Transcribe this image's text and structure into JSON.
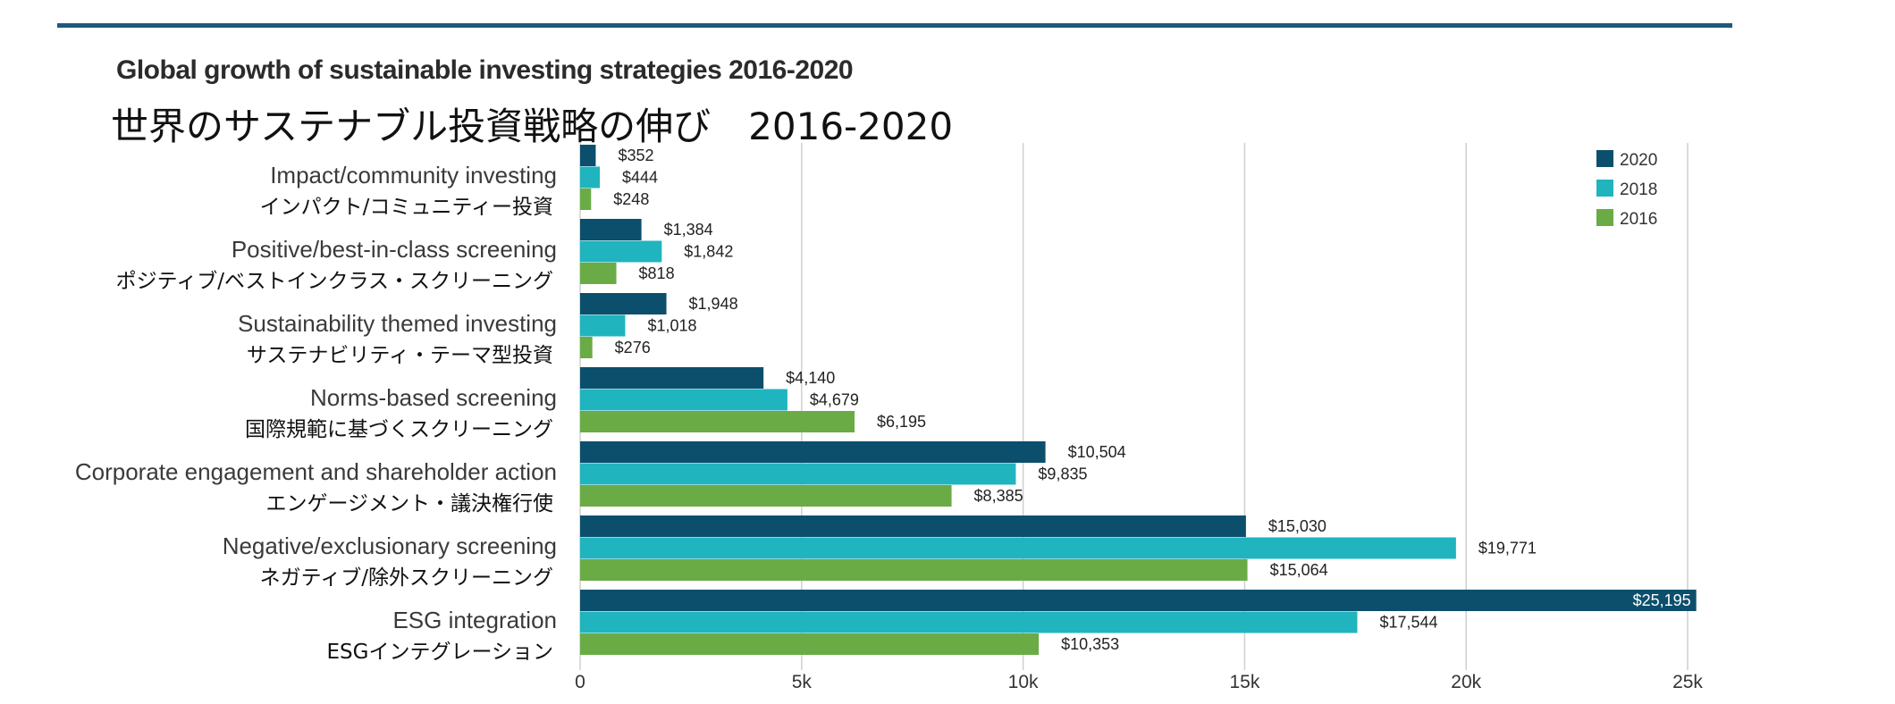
{
  "title_en": "Global growth of sustainable investing strategies 2016-2020",
  "title_ja": "世界のサステナブル投資戦略の伸び　2016-2020",
  "colors": {
    "2020": "#0b4f6c",
    "2018": "#20b4bf",
    "2016": "#6aab45",
    "rule": "#1e5a7a"
  },
  "chart_data": {
    "type": "bar",
    "orientation": "horizontal",
    "categories": [
      "Impact/community investing",
      "Positive/best-in-class screening",
      "Sustainability themed investing",
      "Norms-based screening",
      "Corporate engagement and shareholder action",
      "Negative/exclusionary screening",
      "ESG integration"
    ],
    "categories_ja": [
      "インパクト/コミュニティー投資",
      "ポジティブ/ベストインクラス・スクリーニング",
      "サステナビリティ・テーマ型投資",
      "国際規範に基づくスクリーニング",
      "エンゲージメント・議決権行使",
      "ネガティブ/除外スクリーニング",
      "ESGインテグレーション"
    ],
    "series": [
      {
        "name": "2020",
        "values": [
          352,
          1384,
          1948,
          4140,
          10504,
          15030,
          25195
        ],
        "labels": [
          "$352",
          "$1,384",
          "$1,948",
          "$4,140",
          "$10,504",
          "$15,030",
          "$25,195"
        ]
      },
      {
        "name": "2018",
        "values": [
          444,
          1842,
          1018,
          4679,
          9835,
          19771,
          17544
        ],
        "labels": [
          "$444",
          "$1,842",
          "$1,018",
          "$4,679",
          "$9,835",
          "$19,771",
          "$17,544"
        ]
      },
      {
        "name": "2016",
        "values": [
          248,
          818,
          276,
          6195,
          8385,
          15064,
          10353
        ],
        "labels": [
          "$248",
          "$818",
          "$276",
          "$6,195",
          "$8,385",
          "$15,064",
          "$10,353"
        ]
      }
    ],
    "xticks": [
      0,
      5000,
      10000,
      15000,
      20000,
      25000
    ],
    "xtick_labels": [
      "0",
      "5k",
      "10k",
      "15k",
      "20k",
      "25k"
    ],
    "xlim": [
      0,
      25195
    ],
    "grid": "vertical",
    "legend": "top-right"
  }
}
